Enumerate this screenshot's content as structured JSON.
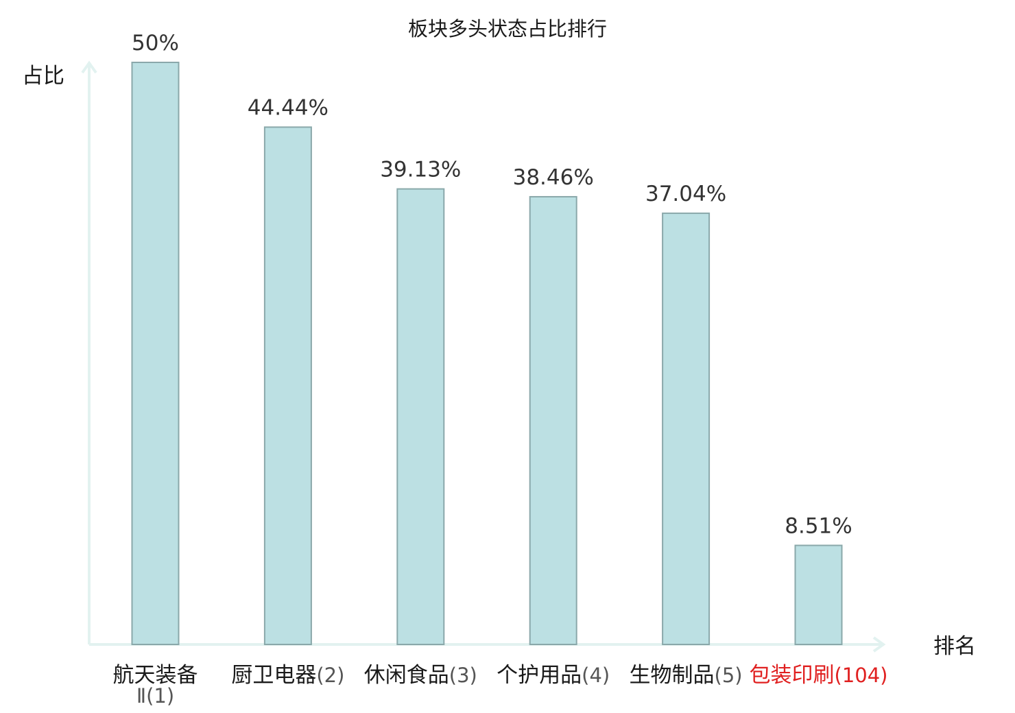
{
  "chart_data": {
    "type": "bar",
    "title": "板块多头状态占比排行",
    "ylabel": "占比",
    "xlabel": "排名",
    "categories": [
      {
        "name": "航天装备Ⅱ",
        "rank": "(1)",
        "value": 50,
        "label": "50%"
      },
      {
        "name": "厨卫电器",
        "rank": "(2)",
        "value": 44.44,
        "label": "44.44%"
      },
      {
        "name": "休闲食品",
        "rank": "(3)",
        "value": 39.13,
        "label": "39.13%"
      },
      {
        "name": "个护用品",
        "rank": "(4)",
        "value": 38.46,
        "label": "38.46%"
      },
      {
        "name": "生物制品",
        "rank": "(5)",
        "value": 37.04,
        "label": "37.04%"
      },
      {
        "name": "包装印刷",
        "rank": "(104)",
        "value": 8.51,
        "label": "8.51%",
        "highlight": true
      }
    ],
    "ylim": [
      0,
      50
    ],
    "grid": false,
    "colors": {
      "bar_fill": "#bce0e3",
      "bar_stroke": "#8aa8aa",
      "axis": "#e2f2f0",
      "highlight_text": "#e02020"
    }
  }
}
